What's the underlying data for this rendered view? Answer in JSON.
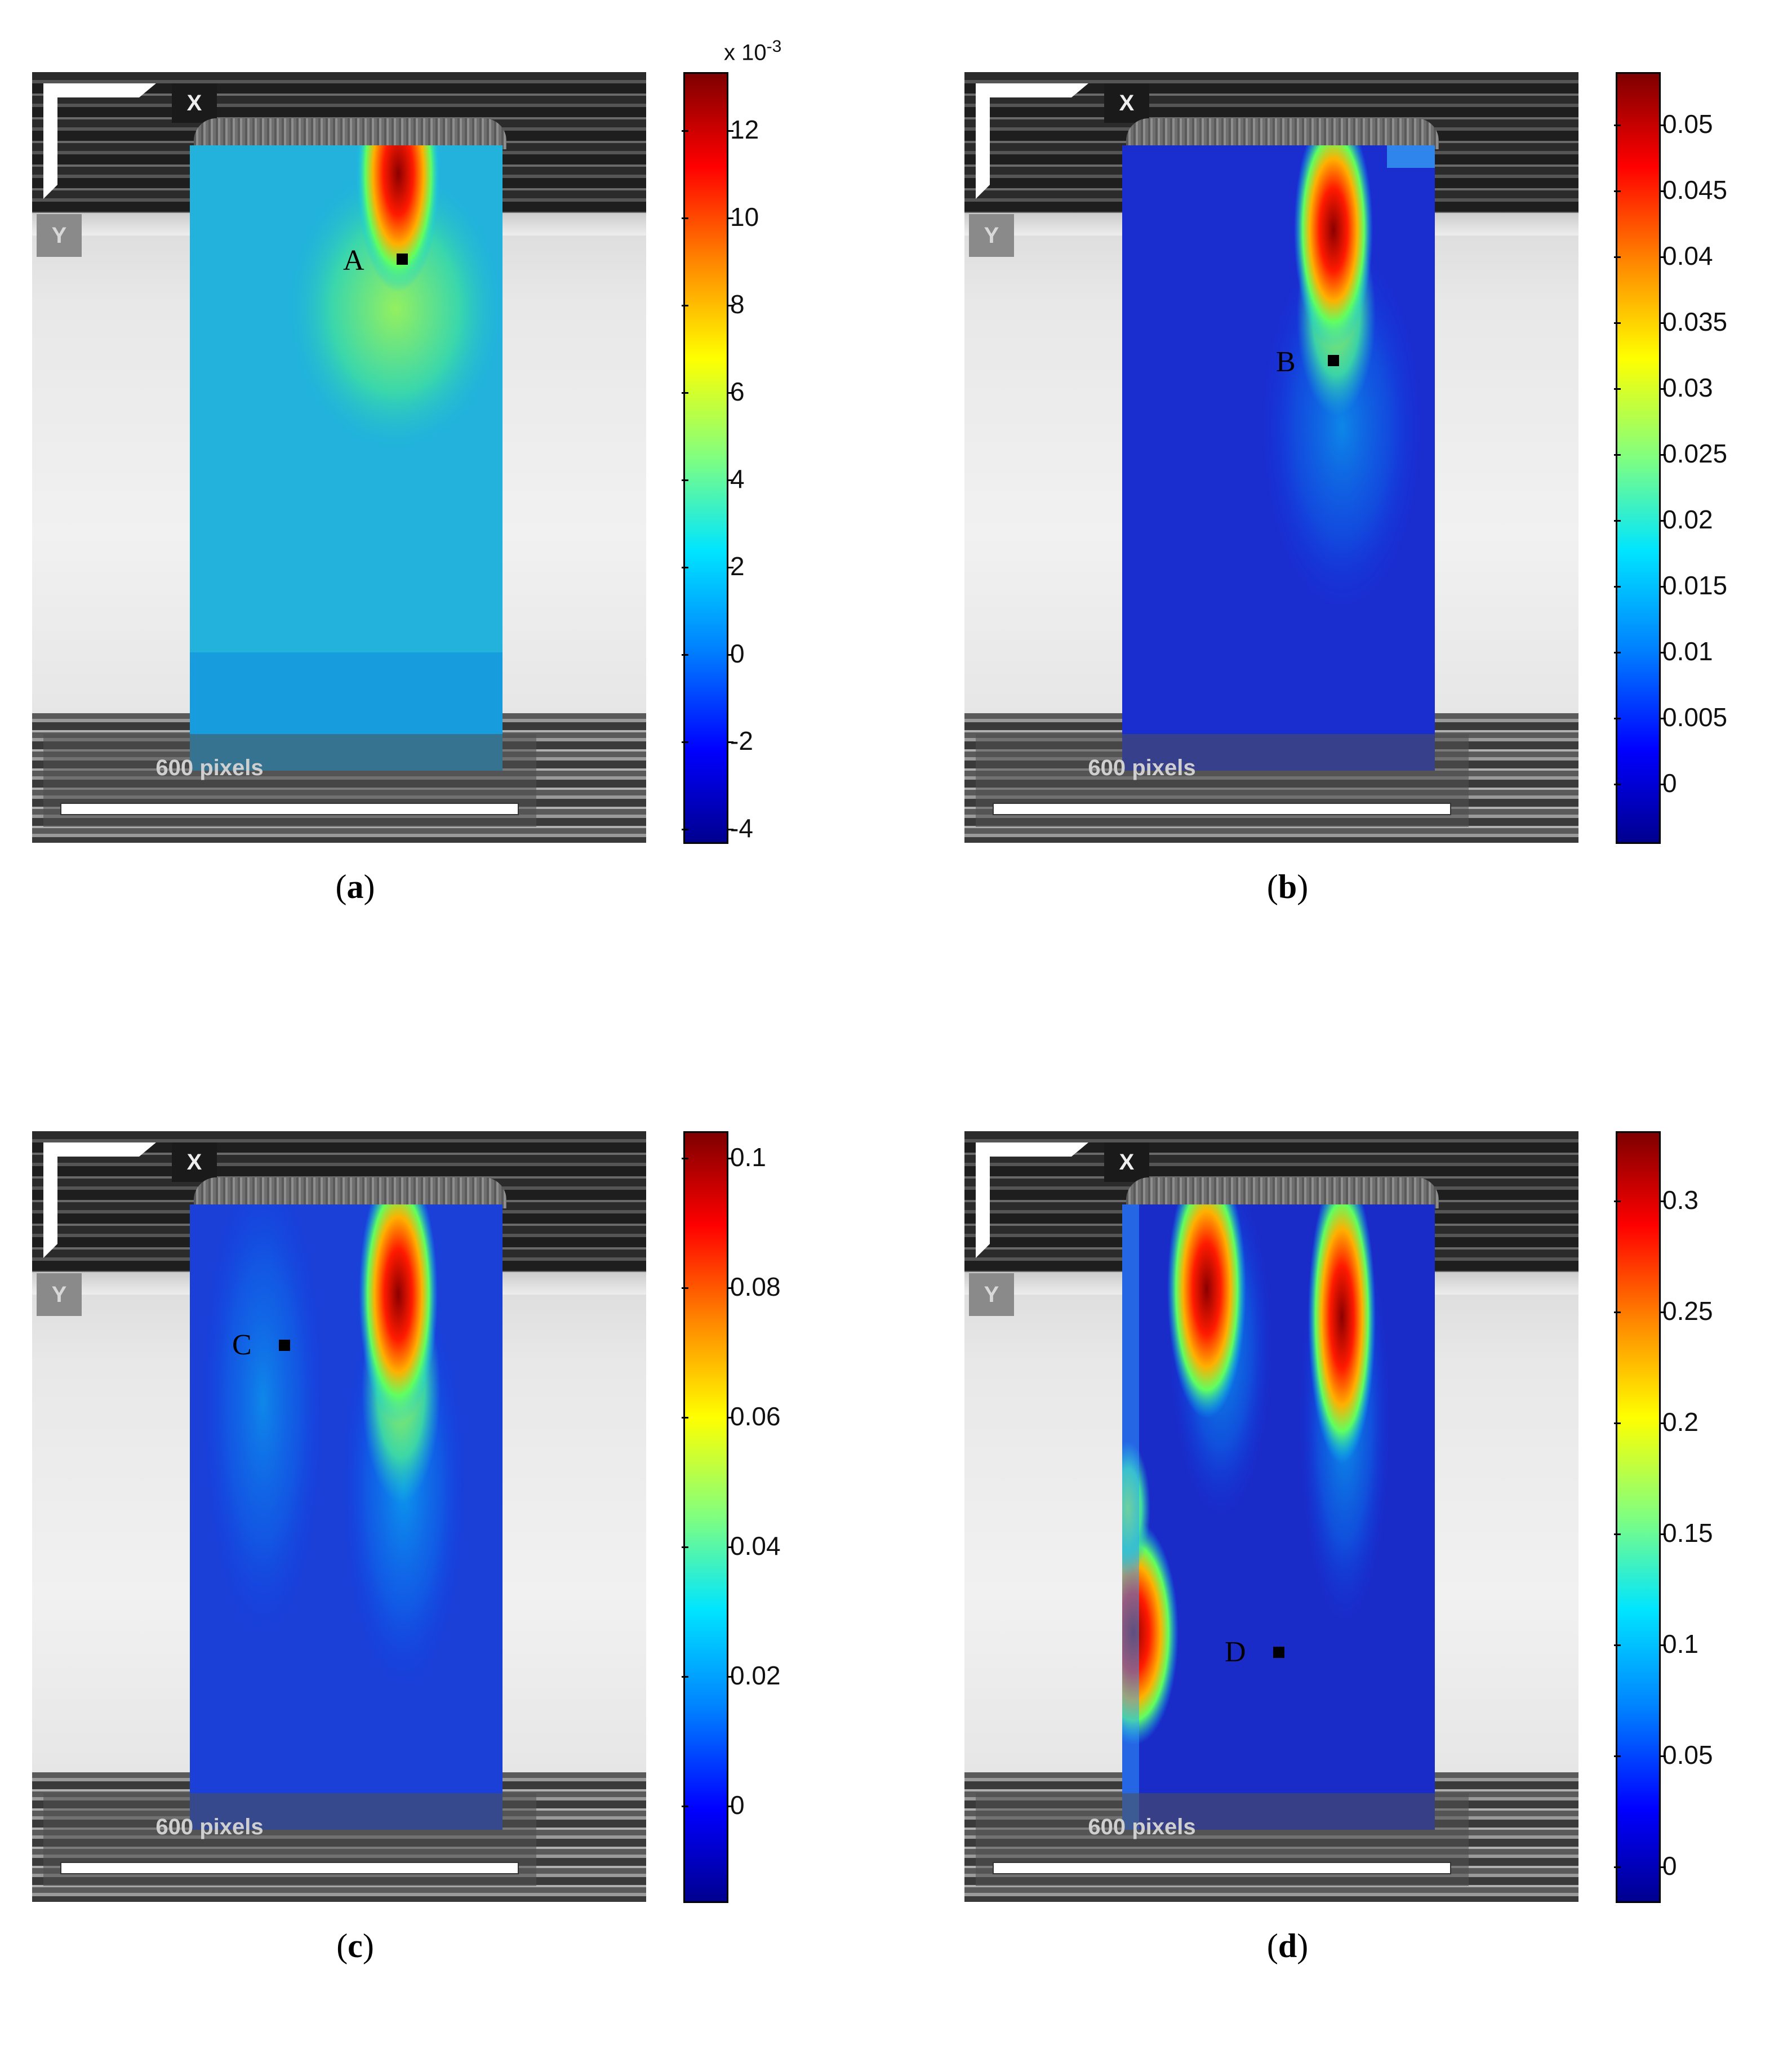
{
  "panels": [
    {
      "id": "a",
      "caption_letter": "a",
      "axis_x": "X",
      "axis_y": "Y",
      "scale_label": "600 pixels",
      "point_label": "A",
      "colorbar": {
        "exponent_label": "x 10",
        "exponent_power": "-3",
        "ticks": [
          "12",
          "10",
          "8",
          "6",
          "4",
          "2",
          "0",
          "-2",
          "-4"
        ],
        "range": [
          -4.5,
          13.5
        ]
      }
    },
    {
      "id": "b",
      "caption_letter": "b",
      "axis_x": "X",
      "axis_y": "Y",
      "scale_label": "600 pixels",
      "point_label": "B",
      "colorbar": {
        "exponent_label": "",
        "exponent_power": "",
        "ticks": [
          "0.05",
          "0.045",
          "0.04",
          "0.035",
          "0.03",
          "0.025",
          "0.02",
          "0.015",
          "0.01",
          "0.005",
          "0"
        ],
        "range": [
          -0.0048,
          0.054
        ]
      }
    },
    {
      "id": "c",
      "caption_letter": "c",
      "axis_x": "X",
      "axis_y": "Y",
      "scale_label": "600 pixels",
      "point_label": "C",
      "colorbar": {
        "exponent_label": "",
        "exponent_power": "",
        "ticks": [
          "0.1",
          "0.08",
          "0.06",
          "0.04",
          "0.02",
          "0"
        ],
        "range": [
          -0.017,
          0.103
        ]
      }
    },
    {
      "id": "d",
      "caption_letter": "d",
      "axis_x": "X",
      "axis_y": "Y",
      "scale_label": "600 pixels",
      "point_label": "D",
      "colorbar": {
        "exponent_label": "",
        "exponent_power": "",
        "ticks": [
          "0.3",
          "0.25",
          "0.2",
          "0.15",
          "0.1",
          "0.05",
          "0"
        ],
        "range": [
          -0.003,
          0.345
        ]
      }
    }
  ],
  "colors": {
    "field_low": "#0000c8",
    "field_mid": "#00b4e6",
    "field_high": "#b40000"
  }
}
